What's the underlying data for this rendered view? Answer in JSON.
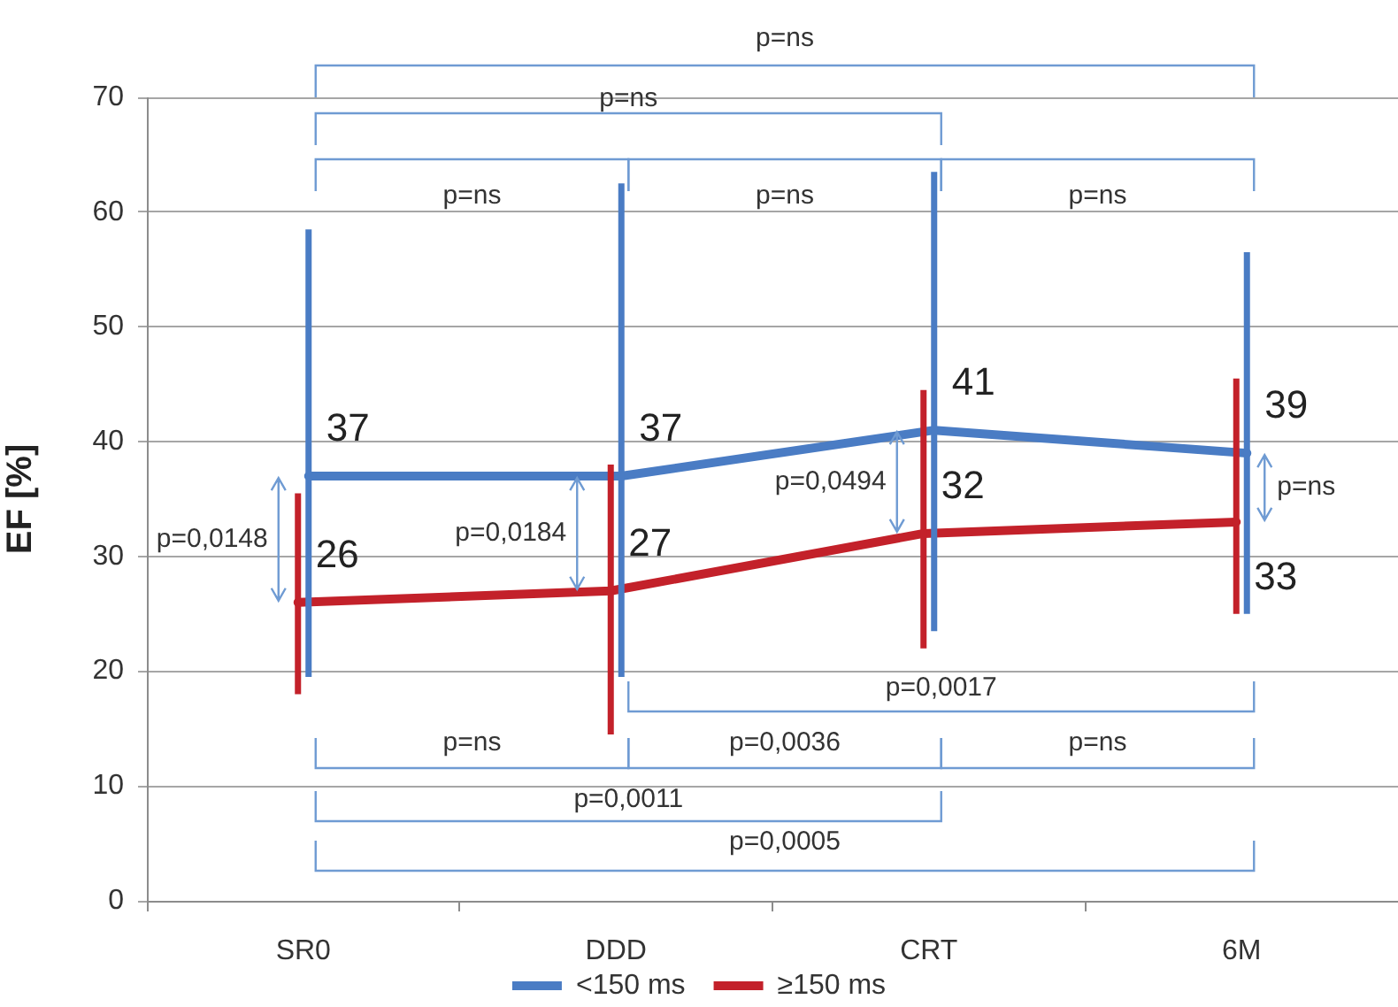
{
  "chart_data": {
    "type": "line",
    "categories": [
      "SR0",
      "DDD",
      "CRT",
      "6M"
    ],
    "series": [
      {
        "name": "<150 ms",
        "color": "#4a7cc4",
        "values": [
          37,
          37,
          41,
          39
        ],
        "errors": [
          [
            19.5,
            58.5
          ],
          [
            19.5,
            62.5
          ],
          [
            23.5,
            63.5
          ],
          [
            25,
            56.5
          ]
        ]
      },
      {
        "name": "≥150 ms",
        "color": "#c3212a",
        "values": [
          26,
          27,
          32,
          33
        ],
        "errors": [
          [
            18,
            35.5
          ],
          [
            14.5,
            38
          ],
          [
            22,
            44.5
          ],
          [
            25,
            45.5
          ]
        ]
      }
    ],
    "ylabel": "EF [%]",
    "ylim": [
      0,
      70
    ],
    "yticks": [
      0,
      10,
      20,
      30,
      40,
      50,
      60,
      70
    ],
    "grid": "y",
    "legend": "bottom",
    "data_labels": true,
    "annotations": [
      "p=ns",
      "p=ns",
      "p=ns",
      "p=ns",
      "p=ns",
      "p=0,0148",
      "p=0,0184",
      "p=0,0494",
      "p=ns",
      "p=0,0017",
      "p=ns",
      "p=0,0036",
      "p=ns",
      "p=0,0011",
      "p=0,0005"
    ]
  }
}
